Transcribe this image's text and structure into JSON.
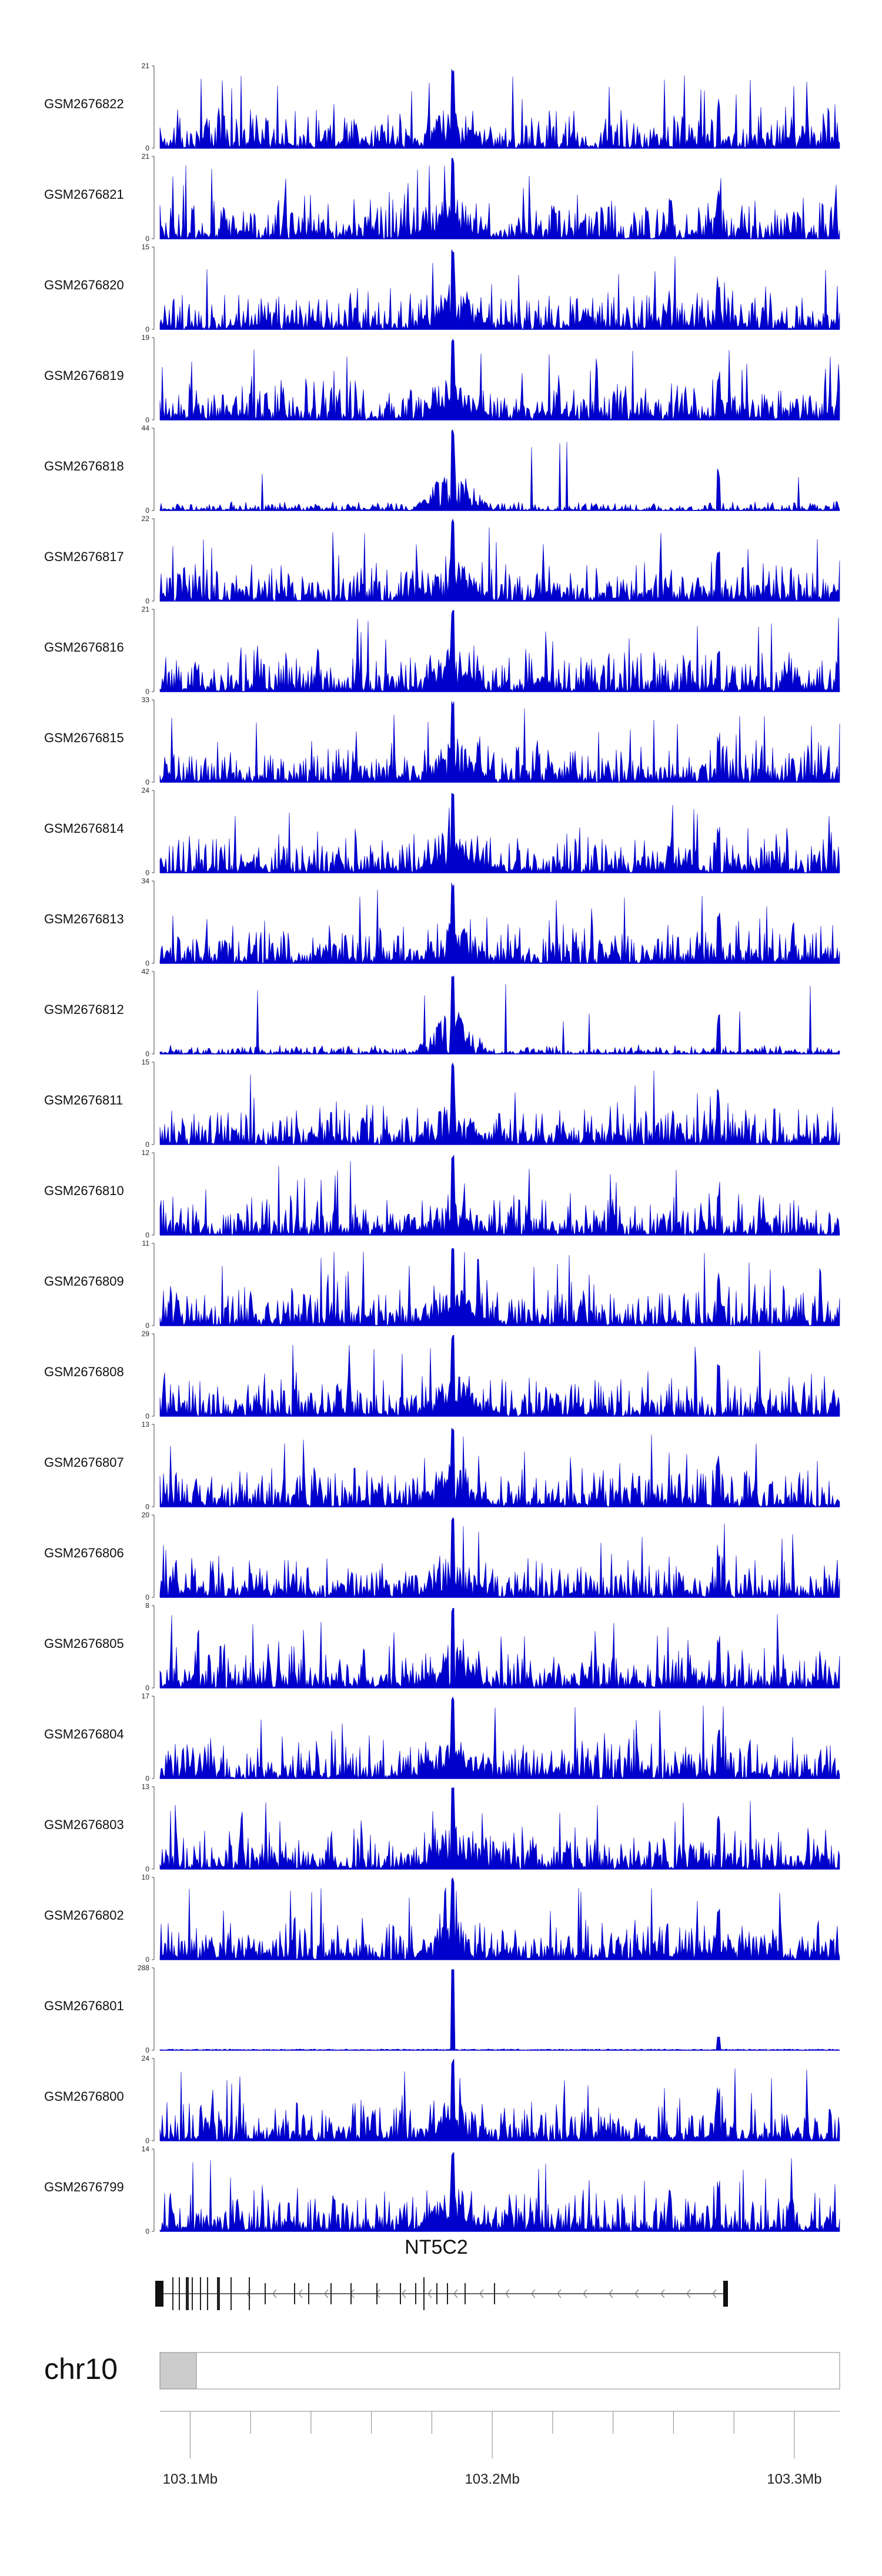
{
  "chart_data": {
    "type": "area",
    "color": "#0000cc",
    "chromosome": "chr10",
    "gene": {
      "name": "NT5C2",
      "strand": "-"
    },
    "region_mb": [
      103.09,
      103.315
    ],
    "x_ticks": [
      {
        "value": 103.1,
        "label": "103.1Mb"
      },
      {
        "value": 103.2,
        "label": "103.2Mb"
      },
      {
        "value": 103.3,
        "label": "103.3Mb"
      }
    ],
    "peak_positions_mb": [
      103.187,
      103.275
    ],
    "series": [
      {
        "name": "GSM2676822",
        "ymax": 21,
        "ymax_label": "21",
        "ymin_label": "0"
      },
      {
        "name": "GSM2676821",
        "ymax": 21,
        "ymax_label": "21",
        "ymin_label": "0"
      },
      {
        "name": "GSM2676820",
        "ymax": 15,
        "ymax_label": "15",
        "ymin_label": "0"
      },
      {
        "name": "GSM2676819",
        "ymax": 19,
        "ymax_label": "19",
        "ymin_label": "0"
      },
      {
        "name": "GSM2676818",
        "ymax": 44,
        "ymax_label": "44",
        "ymin_label": "0"
      },
      {
        "name": "GSM2676817",
        "ymax": 22,
        "ymax_label": "22",
        "ymin_label": "0"
      },
      {
        "name": "GSM2676816",
        "ymax": 21,
        "ymax_label": "21",
        "ymin_label": "0"
      },
      {
        "name": "GSM2676815",
        "ymax": 33,
        "ymax_label": "33",
        "ymin_label": "0"
      },
      {
        "name": "GSM2676814",
        "ymax": 24,
        "ymax_label": "24",
        "ymin_label": "0"
      },
      {
        "name": "GSM2676813",
        "ymax": 34,
        "ymax_label": "34",
        "ymin_label": "0"
      },
      {
        "name": "GSM2676812",
        "ymax": 42,
        "ymax_label": "42",
        "ymin_label": "0"
      },
      {
        "name": "GSM2676811",
        "ymax": 15,
        "ymax_label": "15",
        "ymin_label": "0"
      },
      {
        "name": "GSM2676810",
        "ymax": 12,
        "ymax_label": "12",
        "ymin_label": "0"
      },
      {
        "name": "GSM2676809",
        "ymax": 11,
        "ymax_label": "11",
        "ymin_label": "0"
      },
      {
        "name": "GSM2676808",
        "ymax": 29,
        "ymax_label": "29",
        "ymin_label": "0"
      },
      {
        "name": "GSM2676807",
        "ymax": 13,
        "ymax_label": "13",
        "ymin_label": "0"
      },
      {
        "name": "GSM2676806",
        "ymax": 20,
        "ymax_label": "20",
        "ymin_label": "0"
      },
      {
        "name": "GSM2676805",
        "ymax": 8,
        "ymax_label": "8",
        "ymin_label": "0"
      },
      {
        "name": "GSM2676804",
        "ymax": 17,
        "ymax_label": "17",
        "ymin_label": "0"
      },
      {
        "name": "GSM2676803",
        "ymax": 13,
        "ymax_label": "13",
        "ymin_label": "0"
      },
      {
        "name": "GSM2676802",
        "ymax": 10,
        "ymax_label": "10",
        "ymin_label": "0"
      },
      {
        "name": "GSM2676801",
        "ymax": 288,
        "ymax_label": "288",
        "ymin_label": "0"
      },
      {
        "name": "GSM2676800",
        "ymax": 24,
        "ymax_label": "24",
        "ymin_label": "0"
      },
      {
        "name": "GSM2676799",
        "ymax": 14,
        "ymax_label": "14",
        "ymin_label": "0"
      }
    ]
  }
}
